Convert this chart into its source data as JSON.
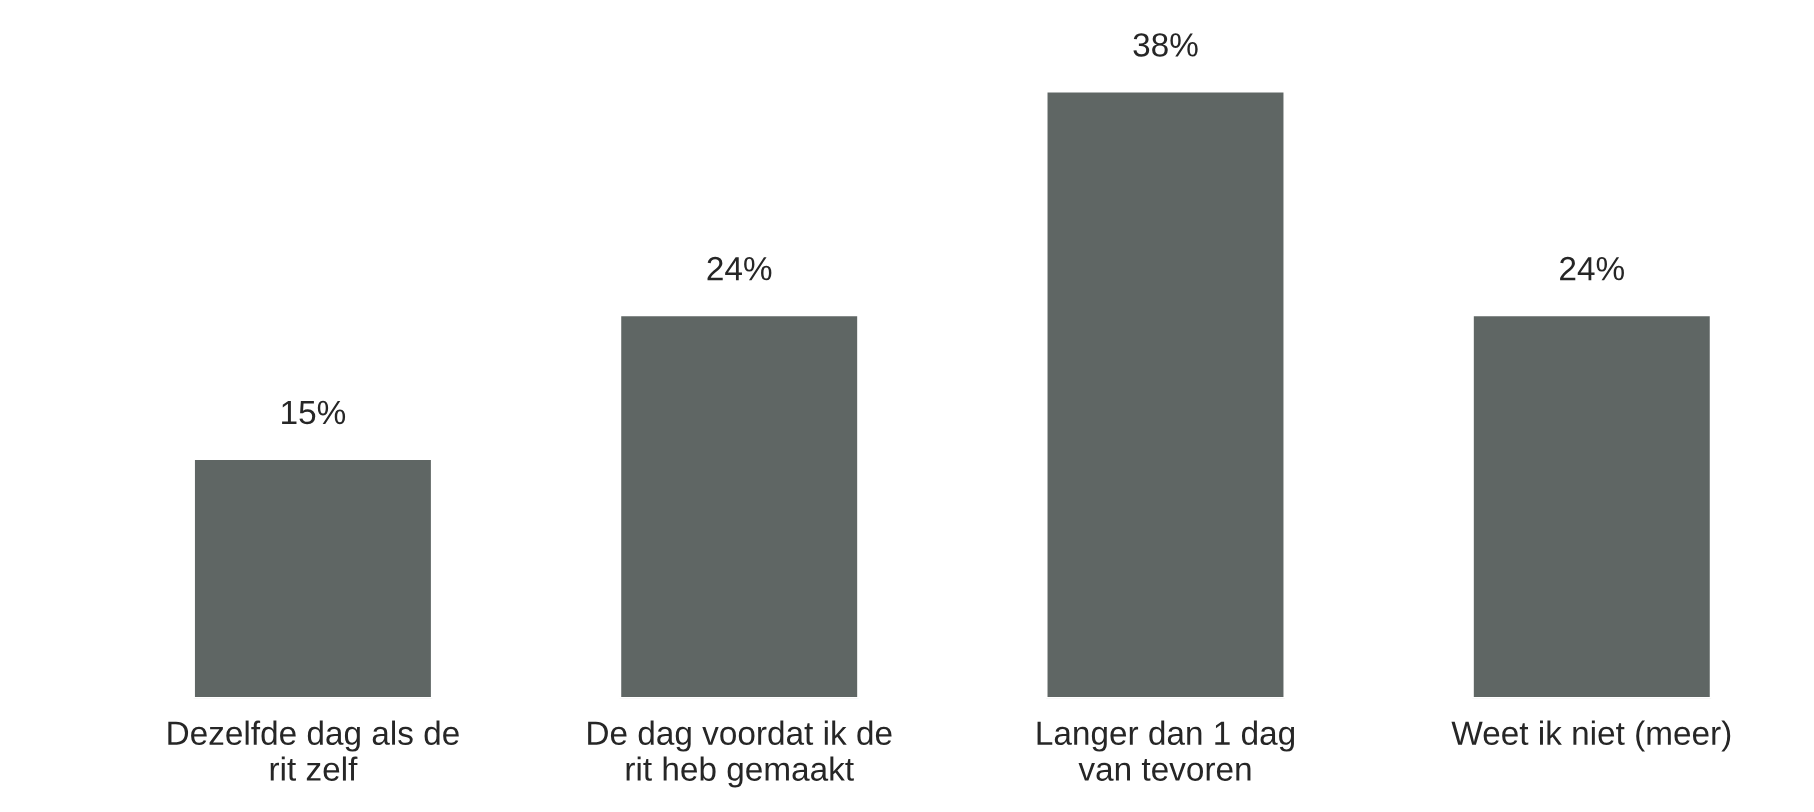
{
  "chart_data": {
    "type": "bar",
    "categories": [
      "Dezelfde dag als de\nrit zelf",
      "De dag voordat ik de\nrit heb gemaakt",
      "Langer dan 1 dag\nvan tevoren",
      "Weet ik niet (meer)"
    ],
    "values": [
      15,
      24,
      38,
      24
    ],
    "value_labels": [
      "15%",
      "24%",
      "38%",
      "24%"
    ],
    "color": "#5f6664",
    "grid": false,
    "legend": false
  }
}
